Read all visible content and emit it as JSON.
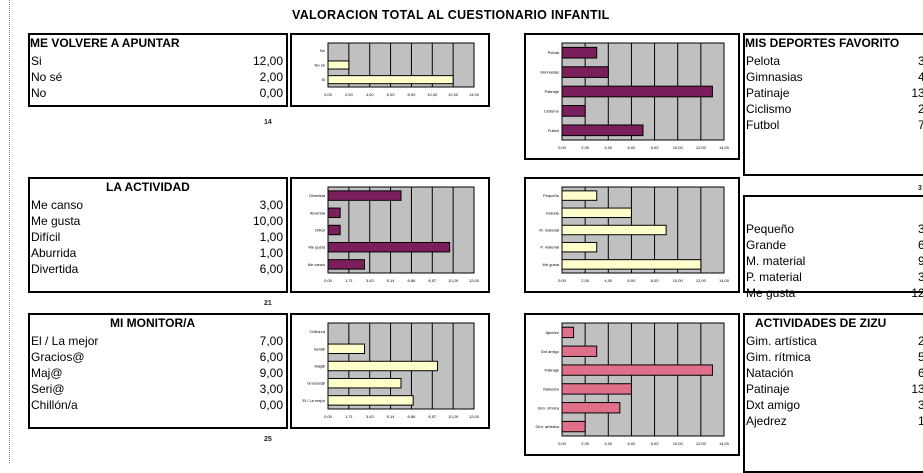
{
  "title": "VALORACION TOTAL AL CUESTIONARIO INFANTIL",
  "colors": {
    "plot_bg": "#c0c0c0",
    "bar_yellow": "#ffffcc",
    "bar_purple": "#7a1f5c",
    "bar_red": "#e0708a",
    "grid": "#000000"
  },
  "panels": {
    "volvere": {
      "header": "ME VOLVERE A APUNTAR",
      "total": "14",
      "rows": [
        {
          "label": "Si",
          "value": "12,00"
        },
        {
          "label": "No sé",
          "value": "2,00"
        },
        {
          "label": "No",
          "value": "0,00"
        }
      ]
    },
    "actividad": {
      "header": "LA ACTIVIDAD",
      "total": "21",
      "rows": [
        {
          "label": "Me canso",
          "value": "3,00"
        },
        {
          "label": "Me gusta",
          "value": "10,00"
        },
        {
          "label": "Difícil",
          "value": "1,00"
        },
        {
          "label": "Aburrida",
          "value": "1,00"
        },
        {
          "label": "Divertida",
          "value": "6,00"
        }
      ]
    },
    "monitor": {
      "header": "MI MONITOR/A",
      "total": "25",
      "rows": [
        {
          "label": "El / La mejor",
          "value": "7,00"
        },
        {
          "label": "Gracios@",
          "value": "6,00"
        },
        {
          "label": "Maj@",
          "value": "9,00"
        },
        {
          "label": "Seri@",
          "value": "3,00"
        },
        {
          "label": "Chillón/a",
          "value": "0,00"
        }
      ]
    },
    "deportes": {
      "header": "MIS DEPORTES FAVORITO",
      "total": "3",
      "rows": [
        {
          "label": "Pelota",
          "value": "3,"
        },
        {
          "label": "Gimnasias",
          "value": "4,"
        },
        {
          "label": "Patinaje",
          "value": "13,"
        },
        {
          "label": "Ciclismo",
          "value": "2,"
        },
        {
          "label": "Futbol",
          "value": "7,"
        }
      ]
    },
    "grupo": {
      "header": "",
      "rows": [
        {
          "label": "Pequeño",
          "value": "3,"
        },
        {
          "label": "Grande",
          "value": "6,"
        },
        {
          "label": "M. material",
          "value": "9,"
        },
        {
          "label": "P. material",
          "value": "3,"
        },
        {
          "label": "Me gusta",
          "value": "12,"
        }
      ]
    },
    "zizu": {
      "header": "ACTIVIDADES DE ZIZU",
      "rows": [
        {
          "label": "Gim. artística",
          "value": "2,"
        },
        {
          "label": "Gim. rítmica",
          "value": "5,"
        },
        {
          "label": "Natación",
          "value": "6,"
        },
        {
          "label": "Patinaje",
          "value": "13,"
        },
        {
          "label": "Dxt amigo",
          "value": "3,"
        },
        {
          "label": "Ajedrez",
          "value": "1,"
        }
      ]
    }
  },
  "chart_data": [
    {
      "type": "bar",
      "orientation": "horizontal",
      "color": "bar_yellow",
      "categories": [
        "No",
        "No sé",
        "Si"
      ],
      "values": [
        0,
        2,
        12
      ],
      "xlim": [
        0,
        14
      ]
    },
    {
      "type": "bar",
      "orientation": "horizontal",
      "color": "bar_purple",
      "categories": [
        "Pelota",
        "Gimnasias",
        "Patinaje",
        "Ciclismo",
        "Futbol"
      ],
      "values": [
        3,
        4,
        13,
        2,
        7
      ],
      "xlim": [
        0,
        14
      ]
    },
    {
      "type": "bar",
      "orientation": "horizontal",
      "color": "bar_purple",
      "categories": [
        "Divertida",
        "Aburrida",
        "Difícil",
        "Me gusta",
        "Me canso"
      ],
      "values": [
        6,
        1,
        1,
        10,
        3
      ],
      "xlim": [
        0,
        12
      ]
    },
    {
      "type": "bar",
      "orientation": "horizontal",
      "color": "bar_yellow",
      "categories": [
        "Pequeño",
        "Grande",
        "M. material",
        "P. material",
        "Me gusta"
      ],
      "values": [
        3,
        6,
        9,
        3,
        12
      ],
      "xlim": [
        0,
        14
      ]
    },
    {
      "type": "bar",
      "orientation": "horizontal",
      "color": "bar_yellow",
      "categories": [
        "Chillón/a",
        "Seri@",
        "Maj@",
        "Gracios@",
        "El / La mejor"
      ],
      "values": [
        0,
        3,
        9,
        6,
        7
      ],
      "xlim": [
        0,
        12
      ]
    },
    {
      "type": "bar",
      "orientation": "horizontal",
      "color": "bar_red",
      "categories": [
        "Ajedrez",
        "Dxt amigo",
        "Patinaje",
        "Natación",
        "Gim. rítmica",
        "Gim. artística"
      ],
      "values": [
        1,
        3,
        13,
        6,
        5,
        2
      ],
      "xlim": [
        0,
        14
      ]
    }
  ]
}
